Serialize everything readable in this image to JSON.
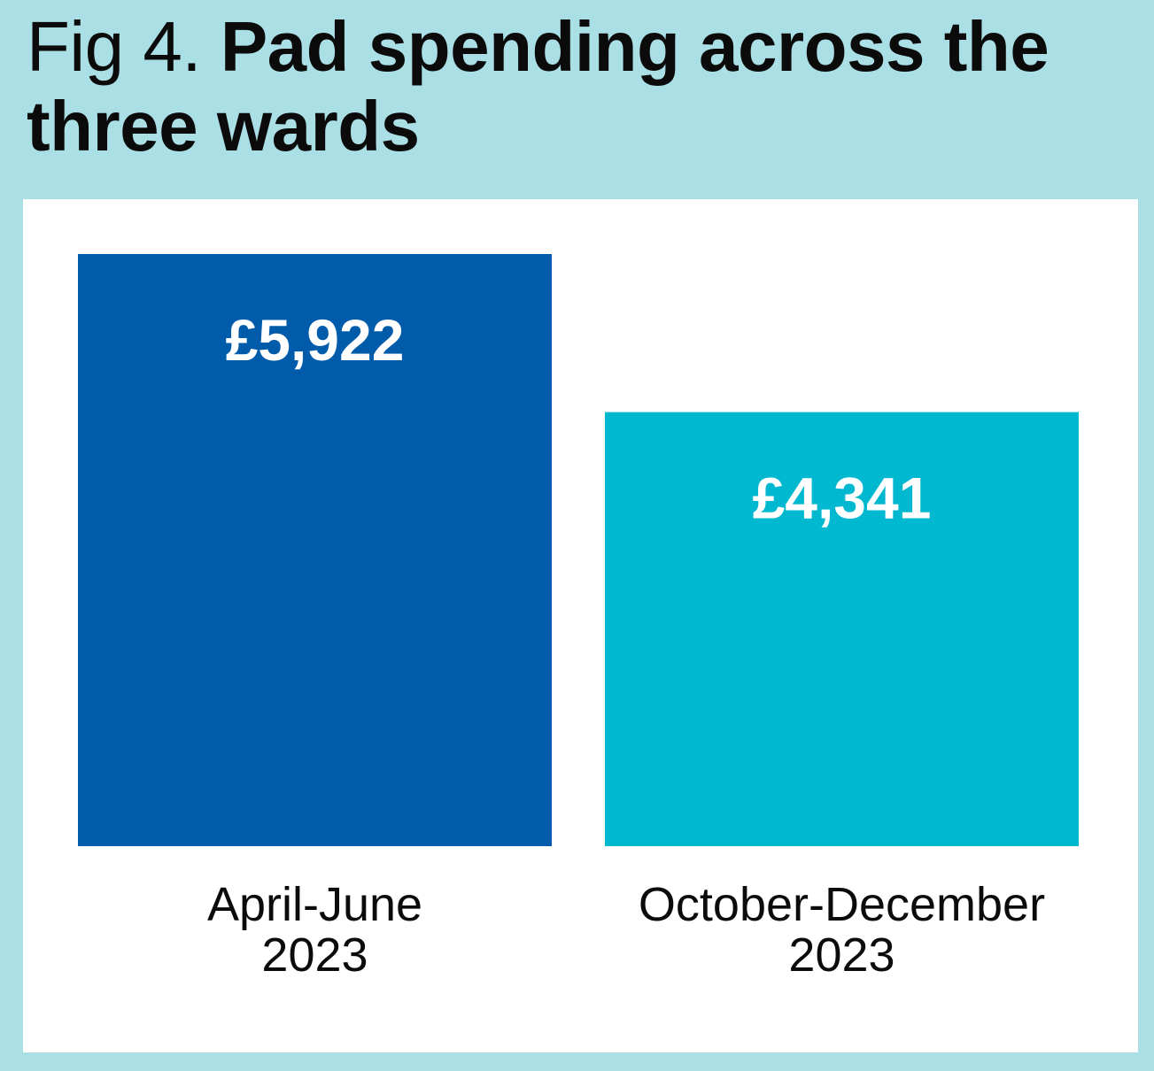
{
  "title": {
    "prefix": "Fig 4.",
    "main": "Pad spending across the three wards"
  },
  "colors": {
    "background": "#abdfe6",
    "panel": "#ffffff",
    "series": [
      "#005bab",
      "#00b8d0"
    ]
  },
  "chart_data": {
    "type": "bar",
    "categories": [
      [
        "April-June",
        "2023"
      ],
      [
        "October-December",
        "2023"
      ]
    ],
    "values": [
      5922,
      4341
    ],
    "value_labels": [
      "£5,922",
      "£4,341"
    ],
    "ylim": [
      0,
      5922
    ],
    "grid": false,
    "legend": "none"
  }
}
